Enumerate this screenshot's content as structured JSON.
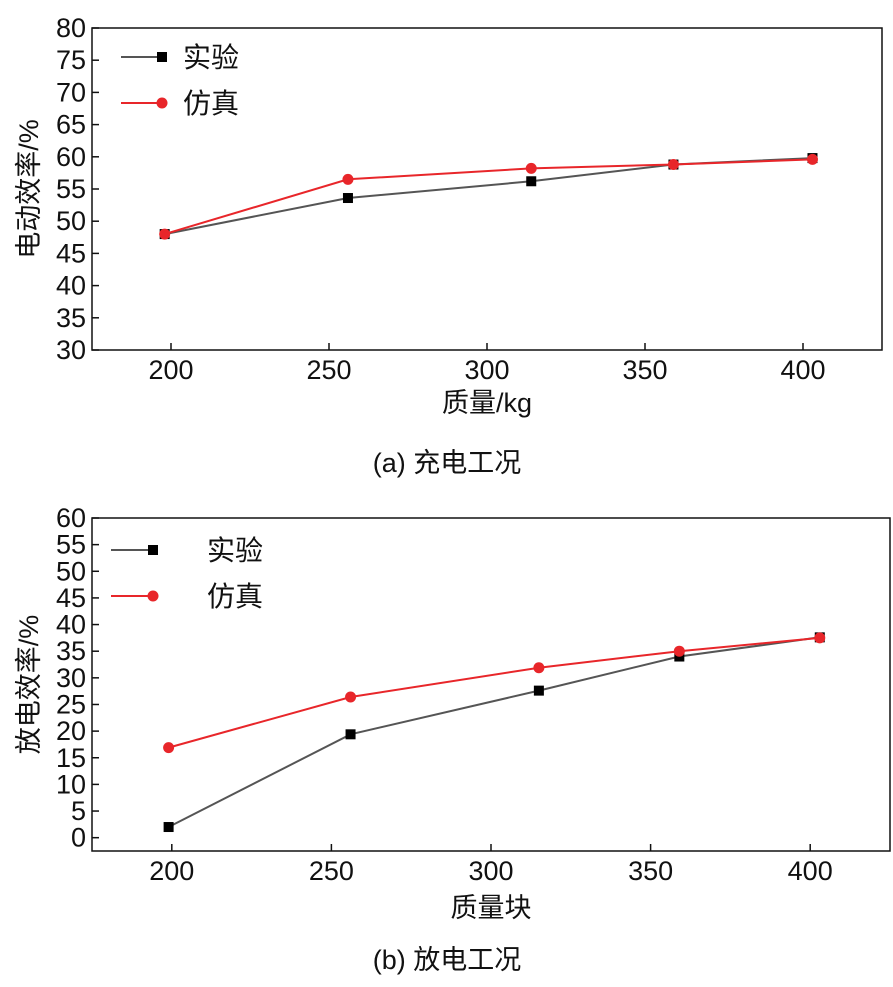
{
  "chart_data": [
    {
      "type": "line",
      "caption": "(a) 充电工况",
      "xlabel": "质量/kg",
      "ylabel": "电动效率/%",
      "xlim": [
        175,
        425
      ],
      "ylim": [
        30,
        80
      ],
      "xticks": [
        200,
        250,
        300,
        350,
        400
      ],
      "yticks": [
        30,
        35,
        40,
        45,
        50,
        55,
        60,
        65,
        70,
        75,
        80
      ],
      "legend_position": "top-left",
      "grid": false,
      "series": [
        {
          "name": "实验",
          "color": "#555555",
          "marker": "square",
          "x": [
            198,
            256,
            314,
            359,
            403
          ],
          "y": [
            48.0,
            53.6,
            56.2,
            58.8,
            59.8
          ]
        },
        {
          "name": "仿真",
          "color": "#e8262a",
          "marker": "circle",
          "x": [
            198,
            256,
            314,
            359,
            403
          ],
          "y": [
            48.0,
            56.5,
            58.2,
            58.8,
            59.6
          ]
        }
      ]
    },
    {
      "type": "line",
      "caption": "(b) 放电工况",
      "xlabel": "质量块",
      "ylabel": "放电效率/%",
      "xlim": [
        175,
        425
      ],
      "ylim": [
        -2.5,
        60
      ],
      "xticks": [
        200,
        250,
        300,
        350,
        400
      ],
      "yticks": [
        0,
        5,
        10,
        15,
        20,
        25,
        30,
        35,
        40,
        45,
        50,
        55,
        60
      ],
      "legend_position": "top-left",
      "grid": false,
      "series": [
        {
          "name": "实验",
          "color": "#555555",
          "marker": "square",
          "x": [
            199,
            256,
            315,
            359,
            403
          ],
          "y": [
            2.0,
            19.4,
            27.6,
            34.0,
            37.6
          ]
        },
        {
          "name": "仿真",
          "color": "#e8262a",
          "marker": "circle",
          "x": [
            199,
            256,
            315,
            359,
            403
          ],
          "y": [
            16.9,
            26.4,
            31.9,
            35.0,
            37.5
          ]
        }
      ]
    }
  ]
}
